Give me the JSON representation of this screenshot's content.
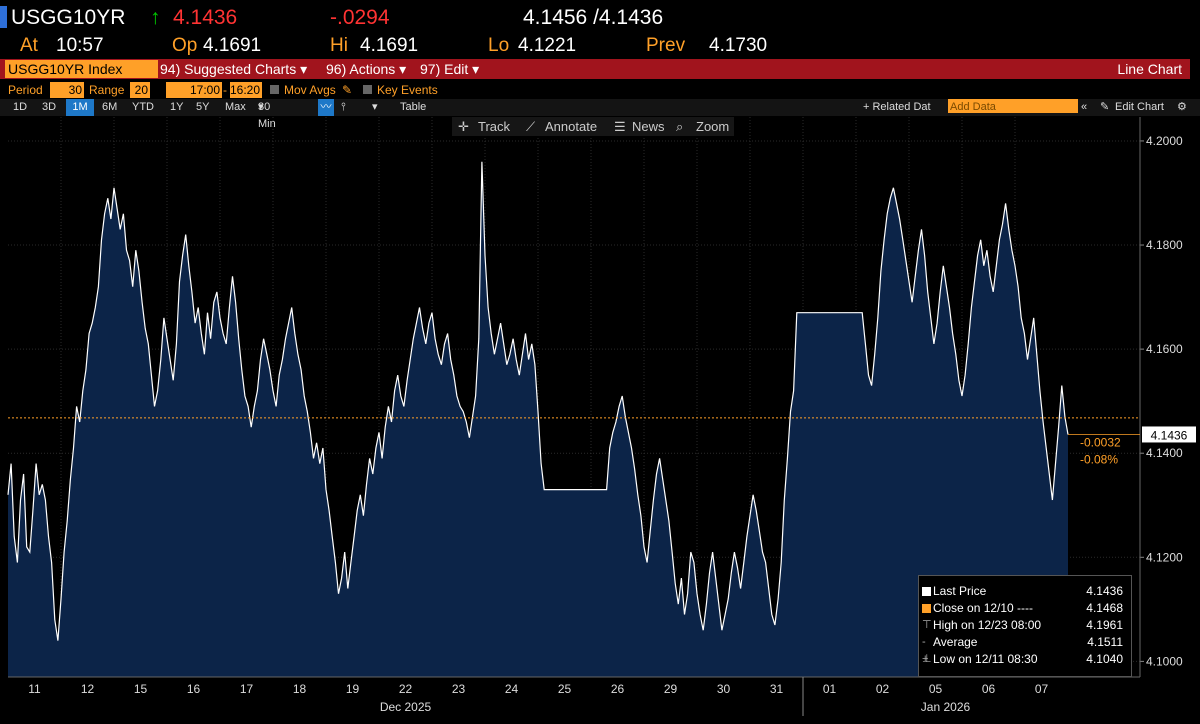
{
  "header": {
    "ticker": "USGG10YR",
    "last_price": "4.1436",
    "change": "-.0294",
    "bid_ask": "4.1456 /4.1436",
    "at_label": "At",
    "time": "10:57",
    "op_label": "Op",
    "open": "4.1691",
    "hi_label": "Hi",
    "high": "4.1691",
    "lo_label": "Lo",
    "low": "4.1221",
    "prev_label": "Prev",
    "prev": "4.1730"
  },
  "menu": {
    "security": "USGG10YR Index",
    "suggested": "94) Suggested Charts",
    "actions": "96) Actions",
    "edit": "97) Edit",
    "chart_type": "Line Chart"
  },
  "options": {
    "period_label": "Period",
    "period_value": "30",
    "range_label": "Range",
    "range_value": "20",
    "range_start": "17:00",
    "range_end": "16:20",
    "mov_avgs": "Mov Avgs",
    "key_events": "Key Events"
  },
  "tabs": {
    "items": [
      "1D",
      "3D",
      "1M",
      "6M",
      "YTD",
      "1Y",
      "5Y",
      "Max"
    ],
    "selected": "1M",
    "interval": "30 Min",
    "table": "Table",
    "related": "+ Related Dat",
    "add_data_placeholder": "Add Data",
    "edit_chart": "Edit Chart"
  },
  "toolbar": {
    "track": "Track",
    "annotate": "Annotate",
    "news": "News",
    "zoom": "Zoom"
  },
  "colors": {
    "line": "#ffffff",
    "area": "#0c2448",
    "close_line": "#ffa028",
    "grid": "#2a2a2a",
    "background": "#000000",
    "accent": "#ffa028",
    "menu_bar": "#a1141d",
    "up_arrow": "#00c800",
    "neg": "#ff3333"
  },
  "chart_data": {
    "type": "area",
    "ylim": [
      4.097,
      4.2046
    ],
    "y_ticks": [
      "4.2000",
      "4.1800",
      "4.1600",
      "4.1400",
      "4.1200",
      "4.1000"
    ],
    "y_tick_values": [
      4.2,
      4.18,
      4.16,
      4.14,
      4.12,
      4.1
    ],
    "x_tick_labels": [
      "11",
      "12",
      "15",
      "16",
      "17",
      "18",
      "19",
      "22",
      "23",
      "24",
      "25",
      "26",
      "29",
      "30",
      "31",
      "01",
      "02",
      "05",
      "06",
      "07"
    ],
    "month_labels": [
      "Dec 2025",
      "Jan 2026"
    ],
    "last_value_label": "4.1436",
    "change_label": "-0.0032",
    "change_pct_label": "-0.08%",
    "close_value": 4.1468,
    "values": [
      4.132,
      4.138,
      4.124,
      4.119,
      4.131,
      4.136,
      4.122,
      4.121,
      4.129,
      4.138,
      4.132,
      4.134,
      4.131,
      4.124,
      4.119,
      4.108,
      4.104,
      4.112,
      4.121,
      4.127,
      4.135,
      4.141,
      4.149,
      4.146,
      4.152,
      4.156,
      4.163,
      4.165,
      4.168,
      4.172,
      4.181,
      4.186,
      4.189,
      4.185,
      4.191,
      4.187,
      4.183,
      4.186,
      4.179,
      4.177,
      4.172,
      4.179,
      4.175,
      4.169,
      4.164,
      4.161,
      4.155,
      4.149,
      4.152,
      4.158,
      4.166,
      4.162,
      4.158,
      4.154,
      4.161,
      4.173,
      4.178,
      4.182,
      4.176,
      4.171,
      4.165,
      4.168,
      4.163,
      4.159,
      4.167,
      4.162,
      4.169,
      4.171,
      4.166,
      4.163,
      4.161,
      4.168,
      4.174,
      4.169,
      4.162,
      4.156,
      4.151,
      4.149,
      4.145,
      4.149,
      4.152,
      4.158,
      4.162,
      4.159,
      4.156,
      4.152,
      4.149,
      4.155,
      4.158,
      4.162,
      4.165,
      4.168,
      4.163,
      4.159,
      4.156,
      4.151,
      4.148,
      4.144,
      4.139,
      4.142,
      4.138,
      4.141,
      4.133,
      4.129,
      4.124,
      4.119,
      4.113,
      4.116,
      4.121,
      4.114,
      4.119,
      4.124,
      4.129,
      4.132,
      4.128,
      4.134,
      4.139,
      4.136,
      4.141,
      4.144,
      4.139,
      4.145,
      4.149,
      4.146,
      4.152,
      4.155,
      4.151,
      4.149,
      4.154,
      4.158,
      4.162,
      4.165,
      4.168,
      4.164,
      4.161,
      4.165,
      4.167,
      4.162,
      4.159,
      4.157,
      4.161,
      4.163,
      4.158,
      4.155,
      4.151,
      4.149,
      4.148,
      4.146,
      4.143,
      4.147,
      4.151,
      4.162,
      4.196,
      4.178,
      4.168,
      4.163,
      4.159,
      4.162,
      4.165,
      4.161,
      4.157,
      4.159,
      4.162,
      4.158,
      4.155,
      4.159,
      4.163,
      4.158,
      4.161,
      4.157,
      4.148,
      4.138,
      4.133,
      4.133,
      4.133,
      4.133,
      4.133,
      4.133,
      4.133,
      4.133,
      4.133,
      4.133,
      4.133,
      4.133,
      4.133,
      4.133,
      4.133,
      4.133,
      4.133,
      4.133,
      4.133,
      4.133,
      4.133,
      4.141,
      4.144,
      4.146,
      4.149,
      4.151,
      4.147,
      4.144,
      4.141,
      4.137,
      4.132,
      4.128,
      4.122,
      4.119,
      4.125,
      4.131,
      4.136,
      4.139,
      4.135,
      4.131,
      4.127,
      4.121,
      4.115,
      4.111,
      4.116,
      4.109,
      4.113,
      4.121,
      4.119,
      4.113,
      4.109,
      4.106,
      4.111,
      4.117,
      4.121,
      4.116,
      4.111,
      4.106,
      4.109,
      4.112,
      4.117,
      4.121,
      4.118,
      4.114,
      4.119,
      4.124,
      4.128,
      4.132,
      4.129,
      4.125,
      4.121,
      4.119,
      4.114,
      4.109,
      4.107,
      4.112,
      4.119,
      4.131,
      4.139,
      4.148,
      4.152,
      4.167,
      4.167,
      4.167,
      4.167,
      4.167,
      4.167,
      4.167,
      4.167,
      4.167,
      4.167,
      4.167,
      4.167,
      4.167,
      4.167,
      4.167,
      4.167,
      4.167,
      4.167,
      4.167,
      4.167,
      4.167,
      4.167,
      4.161,
      4.155,
      4.153,
      4.159,
      4.166,
      4.175,
      4.181,
      4.186,
      4.189,
      4.191,
      4.188,
      4.185,
      4.181,
      4.177,
      4.173,
      4.169,
      4.174,
      4.179,
      4.183,
      4.178,
      4.171,
      4.166,
      4.161,
      4.165,
      4.171,
      4.176,
      4.172,
      4.168,
      4.163,
      4.159,
      4.154,
      4.151,
      4.155,
      4.161,
      4.168,
      4.173,
      4.178,
      4.181,
      4.176,
      4.179,
      4.174,
      4.171,
      4.176,
      4.181,
      4.184,
      4.188,
      4.183,
      4.179,
      4.176,
      4.172,
      4.166,
      4.163,
      4.158,
      4.162,
      4.166,
      4.159,
      4.152,
      4.146,
      4.141,
      4.136,
      4.131,
      4.138,
      4.145,
      4.153,
      4.147,
      4.1436
    ]
  },
  "legend": {
    "rows": [
      {
        "label": "Last Price",
        "value": "4.1436"
      },
      {
        "label": "Close on 12/10 ----",
        "value": "4.1468"
      },
      {
        "label": "High on 12/23 08:00",
        "value": "4.1961"
      },
      {
        "label": "Average",
        "value": "4.1511"
      },
      {
        "label": "Low on 12/11 08:30",
        "value": "4.1040"
      }
    ]
  }
}
